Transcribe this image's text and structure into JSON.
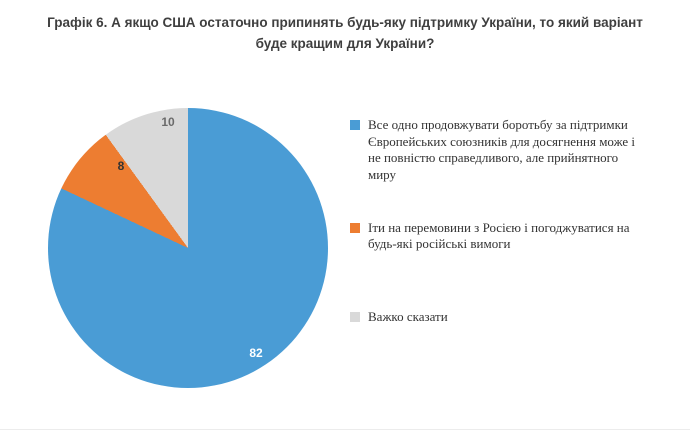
{
  "chart_data": {
    "type": "pie",
    "title": "Графік 6. А якщо США остаточно припинять будь-яку підтримку України, то який варіант буде кращим для України?",
    "legend_position": "right",
    "start_angle_deg": 0,
    "direction": "clockwise",
    "slices": [
      {
        "label": "Все одно продовжувати боротьбу за підтримки Європейських союзників для досягнення може і не повністю справедливого, але прийнятного миру",
        "value": 82,
        "color": "#4A9CD5",
        "value_label_color": "#FFFFFF"
      },
      {
        "label": "Іти на перемовини з Росією і погоджуватися на будь-які російські вимоги",
        "value": 8,
        "color": "#ED7D31",
        "value_label_color": "#333333"
      },
      {
        "label": "Важко сказати",
        "value": 10,
        "color": "#D9D9D9",
        "value_label_color": "#6A6A6A"
      }
    ]
  }
}
